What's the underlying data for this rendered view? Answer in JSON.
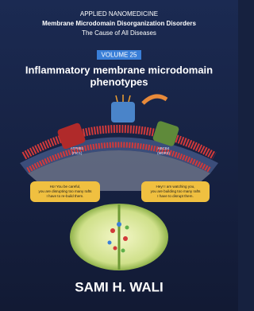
{
  "header": {
    "series": "APPLIED NANOMEDICINE",
    "subtitle": "Membrane Microdomain Disorganization Disorders",
    "tagline": "The Cause of All Diseases",
    "volume": "VOLUME 25"
  },
  "title": [
    "Inflammatory membrane microdomain",
    "phenotypes"
  ],
  "illustration": {
    "left_protein": [
      "ATP8B1",
      "(FIC1)"
    ],
    "right_protein": [
      "ABCB4",
      "(MDR3)"
    ],
    "left_bubble": [
      "Ho! You be careful,",
      "you are disrupting too many rafts",
      "I have to re-build them."
    ],
    "right_bubble": [
      "Hey! I am watching you,",
      "you are building too many rafts",
      "I have to disrupt them."
    ]
  },
  "author": "SAMI H. WALI"
}
